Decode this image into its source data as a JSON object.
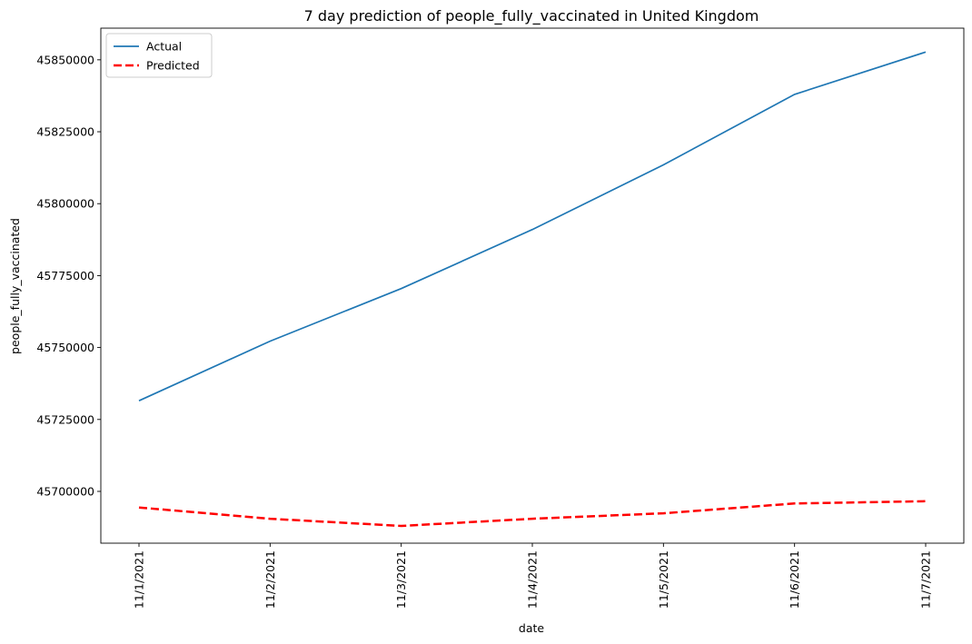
{
  "chart_data": {
    "type": "line",
    "title": "7 day prediction of people_fully_vaccinated in United Kingdom",
    "xlabel": "date",
    "ylabel": "people_fully_vaccinated",
    "categories": [
      "11/1/2021",
      "11/2/2021",
      "11/3/2021",
      "11/4/2021",
      "11/5/2021",
      "11/6/2021",
      "11/7/2021"
    ],
    "ylim": [
      45682000,
      45861000
    ],
    "yticks": [
      45700000,
      45725000,
      45750000,
      45775000,
      45800000,
      45825000,
      45850000
    ],
    "ytick_labels": [
      "45700000",
      "45725000",
      "45750000",
      "45775000",
      "45800000",
      "45825000",
      "45850000"
    ],
    "grid": false,
    "legend_position": "top-left",
    "series": [
      {
        "name": "Actual",
        "color": "#1f77b4",
        "style": "solid",
        "values": [
          45731500,
          45752200,
          45770500,
          45791000,
          45813500,
          45838000,
          45852700
        ]
      },
      {
        "name": "Predicted",
        "color": "#ff0000",
        "style": "dashed",
        "values": [
          45694400,
          45690500,
          45688000,
          45690500,
          45692400,
          45695800,
          45696600
        ]
      }
    ]
  }
}
